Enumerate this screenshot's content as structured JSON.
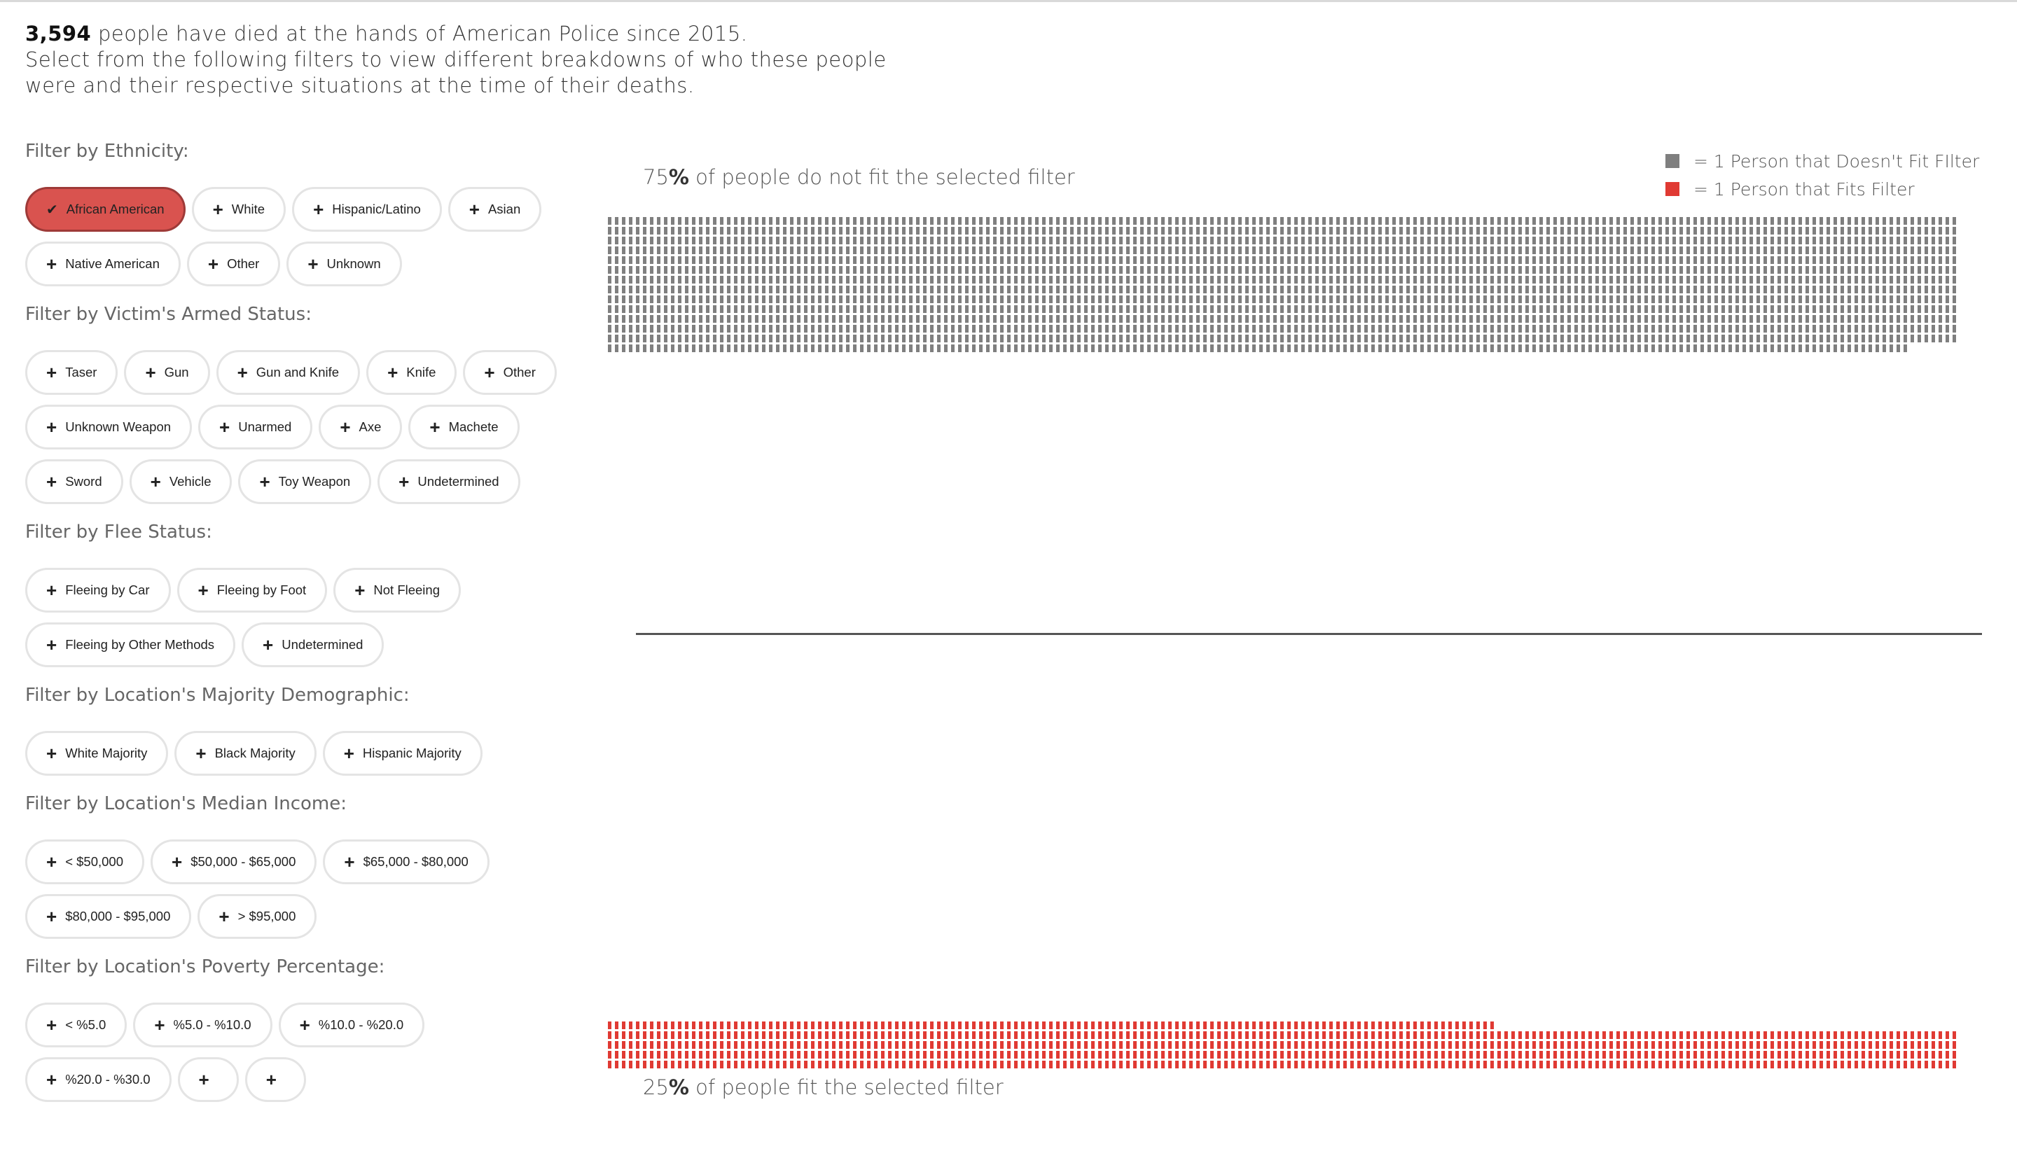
{
  "intro": {
    "count": "3,594",
    "line1_rest": " people have died at the hands of American Police since 2015.",
    "line2": "Select from the following filters to view different breakdowns of who these people",
    "line3": "were and their respective situations at the time of their deaths."
  },
  "filter_groups": [
    {
      "title": "Filter by Ethnicity:",
      "options": [
        {
          "label": "African American",
          "selected": true
        },
        {
          "label": "White"
        },
        {
          "label": "Hispanic/Latino"
        },
        {
          "label": "Asian"
        },
        {
          "label": "Native American"
        },
        {
          "label": "Other"
        },
        {
          "label": "Unknown"
        }
      ]
    },
    {
      "title": "Filter by Victim's Armed Status:",
      "options": [
        {
          "label": "Taser"
        },
        {
          "label": "Gun"
        },
        {
          "label": "Gun and Knife"
        },
        {
          "label": "Knife"
        },
        {
          "label": "Other"
        },
        {
          "label": "Unknown Weapon"
        },
        {
          "label": "Unarmed"
        },
        {
          "label": "Axe"
        },
        {
          "label": "Machete"
        },
        {
          "label": "Sword"
        },
        {
          "label": "Vehicle"
        },
        {
          "label": "Toy Weapon"
        },
        {
          "label": "Undetermined"
        }
      ]
    },
    {
      "title": "Filter by Flee Status:",
      "options": [
        {
          "label": "Fleeing by Car"
        },
        {
          "label": "Fleeing by Foot"
        },
        {
          "label": "Not Fleeing"
        },
        {
          "label": "Fleeing by Other Methods"
        },
        {
          "label": "Undetermined"
        }
      ]
    },
    {
      "title": "Filter by Location's Majority Demographic:",
      "options": [
        {
          "label": "White Majority"
        },
        {
          "label": "Black Majority"
        },
        {
          "label": "Hispanic Majority"
        }
      ]
    },
    {
      "title": "Filter by Location's Median Income:",
      "options": [
        {
          "label": "< $50,000"
        },
        {
          "label": "$50,000 - $65,000"
        },
        {
          "label": "$65,000 - $80,000"
        },
        {
          "label": "$80,000 - $95,000"
        },
        {
          "label": "> $95,000"
        }
      ]
    },
    {
      "title": "Filter by Location's Poverty Percentage:",
      "options": [
        {
          "label": "< %5.0"
        },
        {
          "label": "%5.0 - %10.0"
        },
        {
          "label": "%10.0 - %20.0"
        },
        {
          "label": "%20.0 - %30.0"
        },
        {
          "label": ""
        },
        {
          "label": ""
        }
      ]
    }
  ],
  "legend": {
    "not_fit": "= 1 Person that Doesn't Fit FIlter",
    "fit": "= 1 Person that Fits Filter"
  },
  "labels": {
    "top_pct": "75",
    "top_text": " of people do not fit the selected filter",
    "bottom_pct": "25",
    "bottom_text": " of people fit the selected filter",
    "pct_sign": "%"
  },
  "colors": {
    "not_fit": "#7f7f7f",
    "fit": "#e03a33",
    "selected_pill": "#d9534f"
  },
  "chart_data": {
    "type": "waffle",
    "total": 3594,
    "categories": [
      "Doesn't fit filter",
      "Fits filter"
    ],
    "values": [
      2695,
      899
    ],
    "percent": [
      75,
      25
    ]
  }
}
